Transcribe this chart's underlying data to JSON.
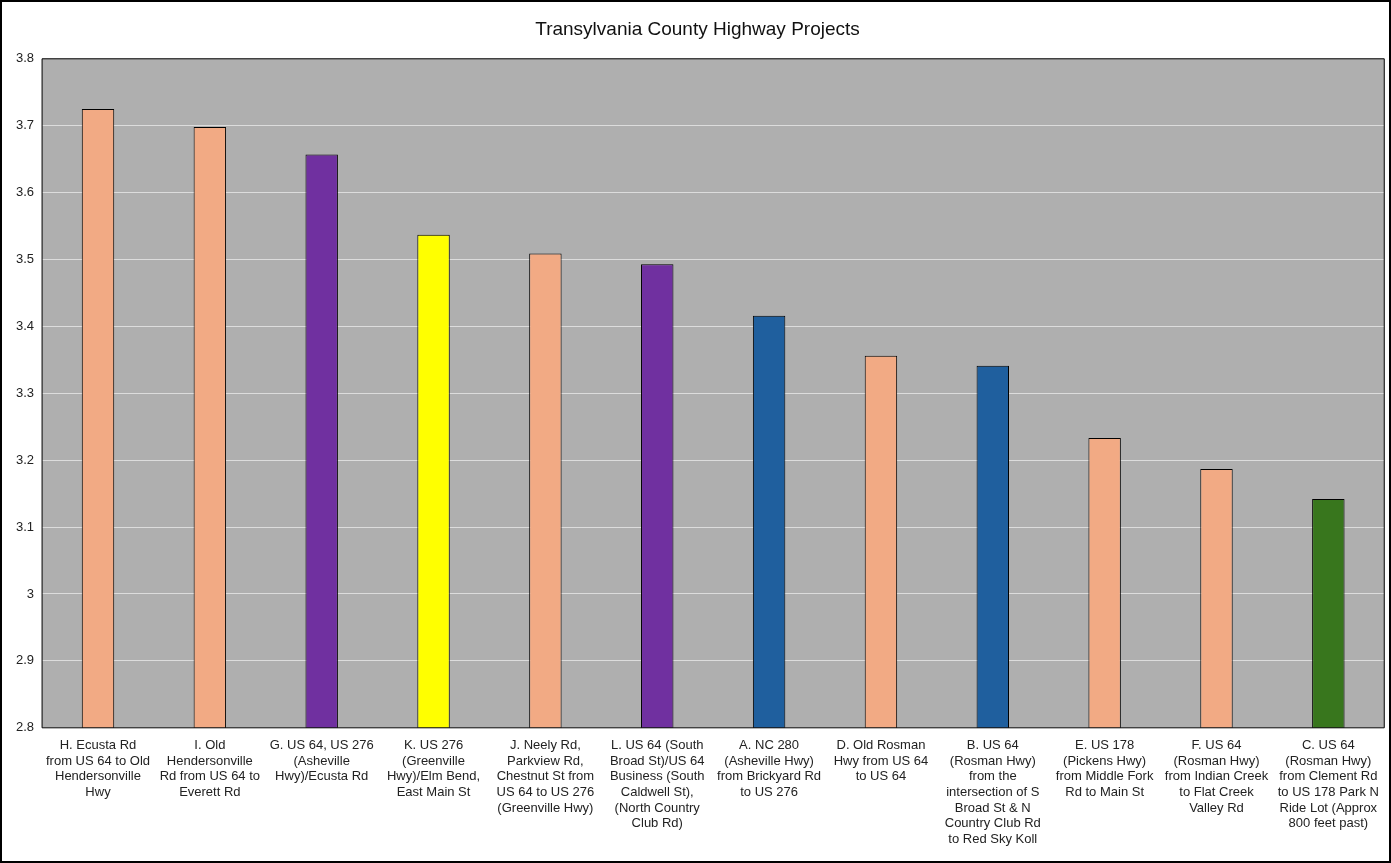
{
  "chart_data": {
    "type": "bar",
    "title": "Transylvania County Highway Projects",
    "categories": [
      "H. Ecusta Rd from US 64 to Old Hendersonville Hwy",
      "I. Old Hendersonville Rd from US 64 to Everett Rd",
      "G. US 64, US 276 (Asheville Hwy)/Ecusta Rd",
      "K. US 276 (Greenville Hwy)/Elm Bend, East Main St",
      "J. Neely Rd, Parkview Rd, Chestnut St from US 64 to US 276 (Greenville Hwy)",
      "L. US 64 (South Broad St)/US 64 Business (South Caldwell St), (North Country Club Rd)",
      "A. NC 280 (Asheville Hwy) from Brickyard Rd to US 276",
      "D. Old Rosman Hwy from US 64 to US 64",
      "B. US 64 (Rosman Hwy) from the intersection of S Broad St & N Country Club Rd to Red Sky Koll",
      "E. US 178 (Pickens Hwy) from Middle Fork Rd to Main St",
      "F. US 64 (Rosman Hwy) from Indian Creek to Flat Creek Valley Rd",
      "C. US 64 (Rosman Hwy) from Clement Rd to US 178 Park N Ride Lot (Approx 800 feet past)"
    ],
    "values": [
      3.725,
      3.698,
      3.657,
      3.537,
      3.509,
      3.493,
      3.416,
      3.356,
      3.341,
      3.233,
      3.187,
      3.142
    ],
    "colors": [
      "#f2aa84",
      "#f2aa84",
      "#7030a0",
      "#ffff00",
      "#f2aa84",
      "#7030a0",
      "#1f5f9e",
      "#f2aa84",
      "#1f5f9e",
      "#f2aa84",
      "#f2aa84",
      "#38761d"
    ],
    "ylim": [
      2.8,
      3.8
    ],
    "yticks": [
      2.8,
      2.9,
      3,
      3.1,
      3.2,
      3.3,
      3.4,
      3.5,
      3.6,
      3.7,
      3.8
    ],
    "grid": "y",
    "legend": false
  }
}
